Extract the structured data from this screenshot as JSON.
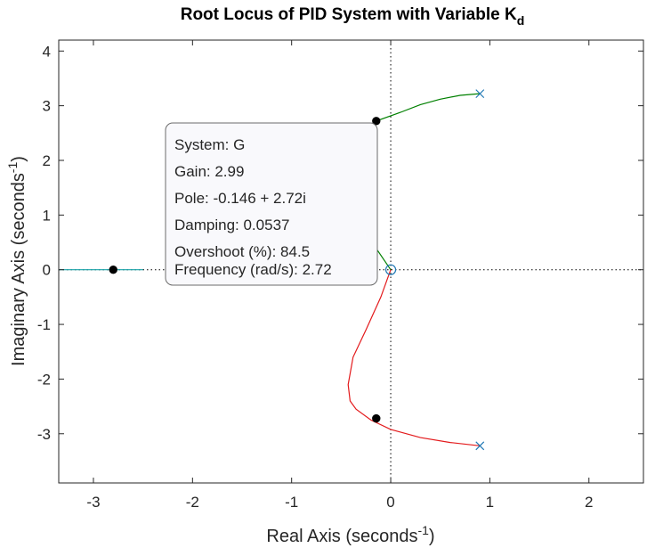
{
  "chart_data": {
    "type": "line",
    "title": "Root Locus of PID System with Variable K",
    "title_subscript": "d",
    "xlabel": "Real Axis (seconds",
    "xlabel_superscript": "-1",
    "xlabel_suffix": ")",
    "ylabel": "Imaginary Axis (seconds",
    "ylabel_superscript": "-1",
    "ylabel_suffix": ")",
    "xlim": [
      -3.35,
      2.55
    ],
    "ylim": [
      -3.9,
      4.2
    ],
    "xticks": [
      -3,
      -2,
      -1,
      0,
      1,
      2
    ],
    "yticks": [
      -3,
      -2,
      -1,
      0,
      1,
      2,
      3,
      4
    ],
    "grid": false,
    "colors": {
      "upper_branch": "#008000",
      "lower_branch": "#e31a1c",
      "real_branch": "#17a2a8",
      "marker": "#1f77b4",
      "reference_line": "#000000"
    },
    "series": [
      {
        "color": "#008000",
        "x": [
          0.9,
          0.7,
          0.5,
          0.3,
          0.1,
          -0.146,
          -0.35,
          -0.4,
          -0.3,
          -0.15,
          0.0
        ],
        "y": [
          3.22,
          3.19,
          3.12,
          3.02,
          2.88,
          2.72,
          2.2,
          1.6,
          0.95,
          0.4,
          0.0
        ]
      },
      {
        "color": "#e31a1c",
        "x": [
          0.0,
          -0.1,
          -0.25,
          -0.38,
          -0.43,
          -0.41,
          -0.35,
          -0.2,
          0.0,
          0.3,
          0.6,
          0.9
        ],
        "y": [
          0.0,
          -0.5,
          -1.1,
          -1.6,
          -2.1,
          -2.4,
          -2.55,
          -2.75,
          -2.92,
          -3.07,
          -3.16,
          -3.22
        ]
      },
      {
        "color": "#17a2a8",
        "x": [
          -3.35,
          -2.5
        ],
        "y": [
          0.0,
          0.0
        ]
      }
    ],
    "poles": [
      {
        "x": 0.9,
        "y": 3.22
      },
      {
        "x": 0.9,
        "y": -3.22
      }
    ],
    "zeros": [
      {
        "x": 0.0,
        "y": 0.0
      }
    ],
    "selected_points": [
      {
        "x": -2.8,
        "y": 0.0
      },
      {
        "x": -0.146,
        "y": 2.72
      },
      {
        "x": -0.146,
        "y": -2.72
      }
    ],
    "datatip": {
      "lines": [
        "System: G",
        "Gain: 2.99",
        "Pole: -0.146 + 2.72i",
        "Damping: 0.0537",
        "Overshoot (%): 84.5",
        "Frequency (rad/s): 2.72"
      ]
    }
  }
}
